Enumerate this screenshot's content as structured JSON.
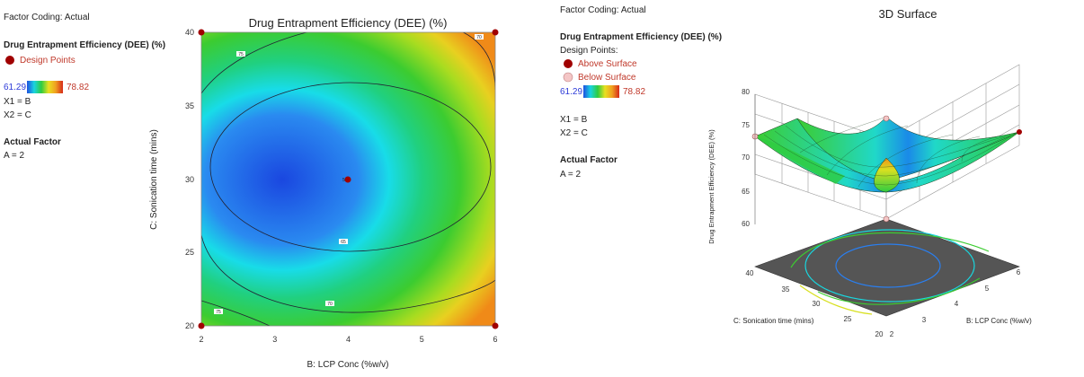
{
  "left_panel": {
    "factor_coding": "Factor Coding: Actual",
    "response_title": "Drug Entrapment Efficiency (DEE) (%)",
    "design_points_label": "Design Points",
    "range_min": "61.29",
    "range_max": "78.82",
    "x1": "X1 = B",
    "x2": "X2 = C",
    "actual_factor_title": "Actual Factor",
    "actual_factor_value": "A = 2"
  },
  "right_panel": {
    "factor_coding": "Factor Coding: Actual",
    "response_title": "Drug Entrapment Efficiency (DEE) (%)",
    "design_points_label": "Design Points:",
    "above_surface": "Above Surface",
    "below_surface": "Below Surface",
    "range_min": "61.29",
    "range_max": "78.82",
    "x1": "X1 = B",
    "x2": "X2 = C",
    "actual_factor_title": "Actual Factor",
    "actual_factor_value": "A = 2"
  },
  "chart_data": [
    {
      "type": "contour",
      "title": "Drug Entrapment Efficiency (DEE) (%)",
      "xlabel": "B: LCP Conc (%w/v)",
      "ylabel": "C: Sonication time (mins)",
      "xlim": [
        2,
        6
      ],
      "ylim": [
        20,
        40
      ],
      "xticks": [
        "2",
        "3",
        "4",
        "5",
        "6"
      ],
      "yticks": [
        "20",
        "25",
        "30",
        "35",
        "40"
      ],
      "contours": [
        {
          "level": 65,
          "label": "65"
        },
        {
          "level": 70,
          "label": "70"
        },
        {
          "level": 75,
          "label": "75"
        }
      ],
      "center_point": {
        "x": 4,
        "y": 30,
        "label": "5"
      },
      "design_points": [
        {
          "x": 2,
          "y": 20
        },
        {
          "x": 6,
          "y": 20
        },
        {
          "x": 2,
          "y": 40
        },
        {
          "x": 6,
          "y": 40
        },
        {
          "x": 4,
          "y": 30
        }
      ],
      "colors": {
        "low": "#1f4fe0",
        "mid": "#2ecc40",
        "high": "#d62a1a",
        "design_point": "#a00000"
      }
    },
    {
      "type": "surface3d",
      "title": "3D Surface",
      "xlabel": "B: LCP Conc (%w/v)",
      "ylabel": "C: Sonication time (mins)",
      "zlabel": "Drug Entrapment Efficiency (DEE) (%)",
      "xticks": [
        "2",
        "3",
        "4",
        "5",
        "6"
      ],
      "yticks": [
        "20",
        "25",
        "30",
        "35",
        "40"
      ],
      "zticks": [
        "60",
        "65",
        "70",
        "75",
        "80"
      ],
      "zlim": [
        60,
        80
      ],
      "design_points": {
        "above_color": "#a00000",
        "below_color": "#f4c6c6"
      }
    }
  ]
}
